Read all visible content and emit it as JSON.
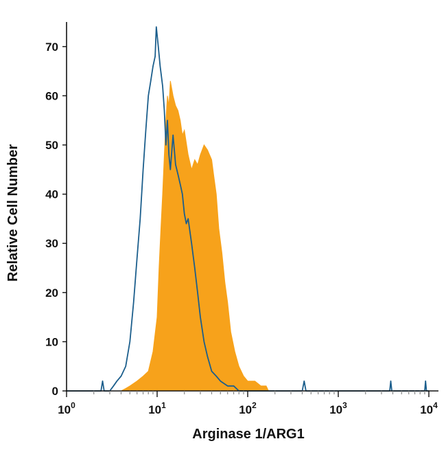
{
  "chart_data": {
    "type": "area",
    "title": "",
    "xlabel": "Arginase 1/ARG1",
    "ylabel": "Relative Cell Number",
    "x_scale": "log",
    "xlim": [
      1,
      10000
    ],
    "ylim": [
      0,
      75
    ],
    "grid": false,
    "x_ticks": [
      {
        "value": 1,
        "base": "10",
        "exp": "0"
      },
      {
        "value": 10,
        "base": "10",
        "exp": "1"
      },
      {
        "value": 100,
        "base": "10",
        "exp": "2"
      },
      {
        "value": 1000,
        "base": "10",
        "exp": "3"
      },
      {
        "value": 10000,
        "base": "10",
        "exp": "4"
      }
    ],
    "y_ticks": [
      {
        "value": 0,
        "label": "0"
      },
      {
        "value": 10,
        "label": "10"
      },
      {
        "value": 20,
        "label": "20"
      },
      {
        "value": 30,
        "label": "30"
      },
      {
        "value": 40,
        "label": "40"
      },
      {
        "value": 50,
        "label": "50"
      },
      {
        "value": 60,
        "label": "60"
      },
      {
        "value": 70,
        "label": "70"
      }
    ],
    "highlighted_tick_color": "#1b5e8c",
    "series": [
      {
        "style": "filled",
        "color": "#f7a21b",
        "points": [
          [
            1,
            0
          ],
          [
            4,
            0
          ],
          [
            4.5,
            0.5
          ],
          [
            5,
            1
          ],
          [
            6,
            2
          ],
          [
            7,
            3
          ],
          [
            8,
            4
          ],
          [
            9,
            8
          ],
          [
            10,
            15
          ],
          [
            10.5,
            25
          ],
          [
            11,
            33
          ],
          [
            11.5,
            40
          ],
          [
            12,
            48
          ],
          [
            12.5,
            55
          ],
          [
            13,
            60
          ],
          [
            13.5,
            58
          ],
          [
            14,
            63
          ],
          [
            15,
            60
          ],
          [
            16,
            58
          ],
          [
            17,
            57
          ],
          [
            18,
            55
          ],
          [
            19,
            52
          ],
          [
            20,
            53
          ],
          [
            22,
            48
          ],
          [
            24,
            45
          ],
          [
            26,
            47
          ],
          [
            28,
            46
          ],
          [
            30,
            48
          ],
          [
            33,
            50
          ],
          [
            36,
            49
          ],
          [
            40,
            47
          ],
          [
            42,
            44
          ],
          [
            45,
            40
          ],
          [
            48,
            33
          ],
          [
            52,
            28
          ],
          [
            56,
            22
          ],
          [
            60,
            18
          ],
          [
            65,
            12
          ],
          [
            72,
            8
          ],
          [
            80,
            5
          ],
          [
            90,
            3
          ],
          [
            100,
            2
          ],
          [
            120,
            2
          ],
          [
            140,
            1
          ],
          [
            160,
            1
          ],
          [
            170,
            0
          ],
          [
            10000,
            0
          ]
        ]
      },
      {
        "style": "line",
        "color": "#1b5e8c",
        "points": [
          [
            1,
            0
          ],
          [
            2.4,
            0
          ],
          [
            2.5,
            2
          ],
          [
            2.6,
            0
          ],
          [
            3,
            0
          ],
          [
            3.3,
            1
          ],
          [
            3.6,
            2
          ],
          [
            4,
            3
          ],
          [
            4.5,
            5
          ],
          [
            5,
            10
          ],
          [
            5.5,
            18
          ],
          [
            6,
            27
          ],
          [
            6.5,
            35
          ],
          [
            7,
            45
          ],
          [
            7.5,
            53
          ],
          [
            8,
            60
          ],
          [
            8.5,
            63
          ],
          [
            9,
            66
          ],
          [
            9.5,
            68
          ],
          [
            9.8,
            74
          ],
          [
            10.3,
            70
          ],
          [
            10.8,
            66
          ],
          [
            11.5,
            62
          ],
          [
            12,
            57
          ],
          [
            12.5,
            50
          ],
          [
            13,
            55
          ],
          [
            13.5,
            48
          ],
          [
            14,
            45
          ],
          [
            15,
            52
          ],
          [
            16,
            46
          ],
          [
            17,
            44
          ],
          [
            18,
            42
          ],
          [
            19,
            40
          ],
          [
            20,
            36
          ],
          [
            21,
            34
          ],
          [
            22,
            35
          ],
          [
            24,
            30
          ],
          [
            26,
            25
          ],
          [
            28,
            20
          ],
          [
            30,
            15
          ],
          [
            33,
            10
          ],
          [
            36,
            7
          ],
          [
            40,
            4
          ],
          [
            45,
            3
          ],
          [
            50,
            2
          ],
          [
            60,
            1
          ],
          [
            70,
            1
          ],
          [
            80,
            0
          ],
          [
            400,
            0
          ],
          [
            420,
            2
          ],
          [
            440,
            0
          ],
          [
            3700,
            0
          ],
          [
            3800,
            2
          ],
          [
            3900,
            0
          ],
          [
            9000,
            0
          ],
          [
            9200,
            2
          ],
          [
            9400,
            0
          ],
          [
            10000,
            0
          ]
        ]
      }
    ]
  }
}
